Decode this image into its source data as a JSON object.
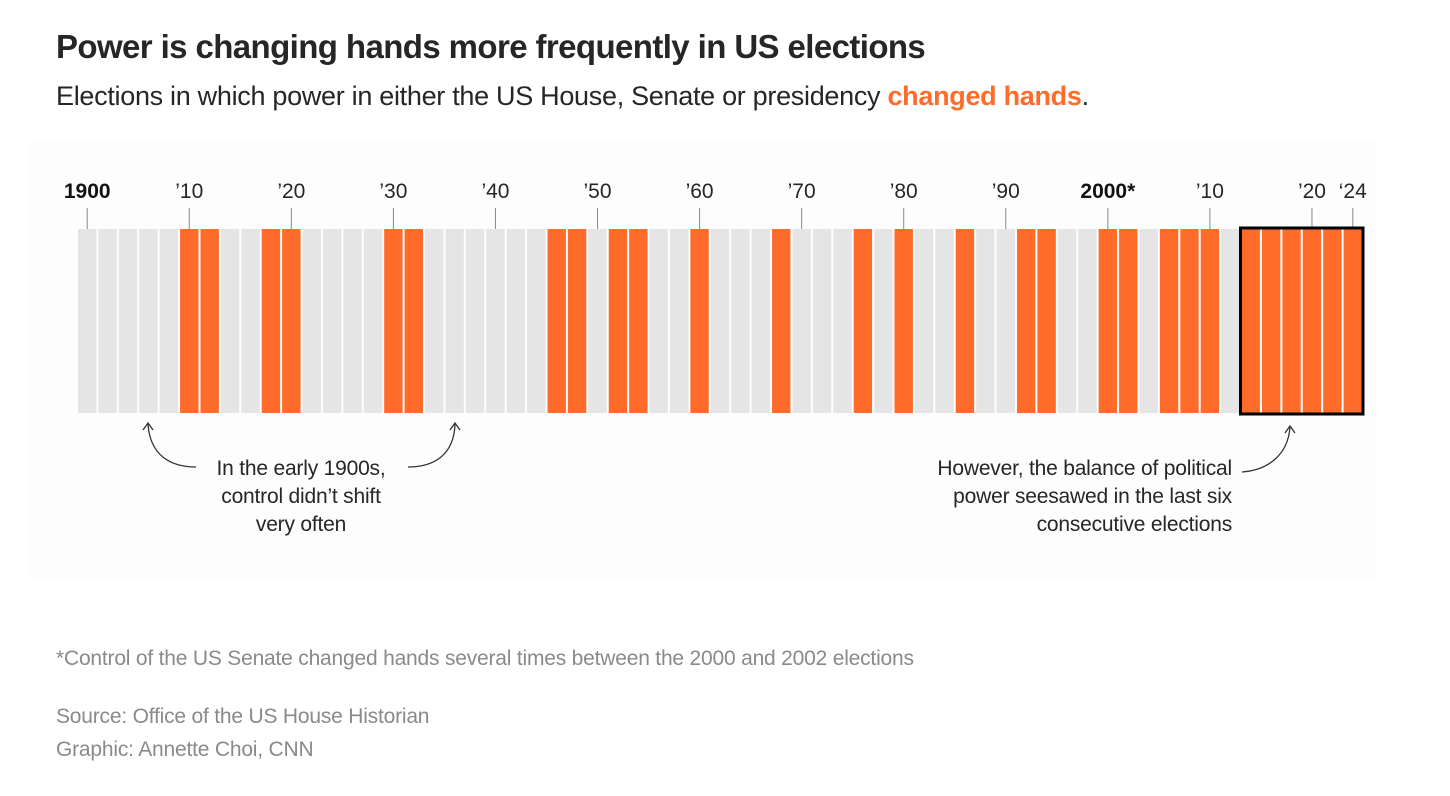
{
  "header": {
    "title": "Power is changing hands more frequently in US elections",
    "subtitle_prefix": "Elections in which power in either the US House, Senate or presidency ",
    "subtitle_highlight": "changed hands",
    "subtitle_suffix": "."
  },
  "colors": {
    "changed": "#ff6b2b",
    "unchanged": "#e5e5e5",
    "highlight_box": "#000000",
    "tick": "#888888"
  },
  "chart_data": {
    "type": "bar",
    "title": "Power is changing hands more frequently in US elections",
    "subtitle": "Elections in which power in either the US House, Senate or presidency changed hands.",
    "xlabel": "",
    "ylabel": "",
    "x_range": [
      1900,
      2024
    ],
    "step": 2,
    "legend": "inline-subtitle",
    "categories": [
      1900,
      1902,
      1904,
      1906,
      1908,
      1910,
      1912,
      1914,
      1916,
      1918,
      1920,
      1922,
      1924,
      1926,
      1928,
      1930,
      1932,
      1934,
      1936,
      1938,
      1940,
      1942,
      1944,
      1946,
      1948,
      1950,
      1952,
      1954,
      1956,
      1958,
      1960,
      1962,
      1964,
      1966,
      1968,
      1970,
      1972,
      1974,
      1976,
      1978,
      1980,
      1982,
      1984,
      1986,
      1988,
      1990,
      1992,
      1994,
      1996,
      1998,
      2000,
      2002,
      2004,
      2006,
      2008,
      2010,
      2012,
      2014,
      2016,
      2018,
      2020,
      2022,
      2024
    ],
    "changed_hands": [
      0,
      0,
      0,
      0,
      0,
      1,
      1,
      0,
      0,
      1,
      1,
      0,
      0,
      0,
      0,
      1,
      1,
      0,
      0,
      0,
      0,
      0,
      0,
      1,
      1,
      0,
      1,
      1,
      0,
      0,
      1,
      0,
      0,
      0,
      1,
      0,
      0,
      0,
      1,
      0,
      1,
      0,
      0,
      1,
      0,
      0,
      1,
      1,
      0,
      0,
      1,
      1,
      0,
      1,
      1,
      1,
      0,
      1,
      1,
      1,
      1,
      1,
      1
    ],
    "ticks": [
      {
        "year": 1900,
        "label": "1900",
        "bold": true
      },
      {
        "year": 1910,
        "label": "’10",
        "bold": false
      },
      {
        "year": 1920,
        "label": "’20",
        "bold": false
      },
      {
        "year": 1930,
        "label": "’30",
        "bold": false
      },
      {
        "year": 1940,
        "label": "’40",
        "bold": false
      },
      {
        "year": 1950,
        "label": "’50",
        "bold": false
      },
      {
        "year": 1960,
        "label": "’60",
        "bold": false
      },
      {
        "year": 1970,
        "label": "’70",
        "bold": false
      },
      {
        "year": 1980,
        "label": "’80",
        "bold": false
      },
      {
        "year": 1990,
        "label": "’90",
        "bold": false
      },
      {
        "year": 2000,
        "label": "2000*",
        "bold": true
      },
      {
        "year": 2010,
        "label": "’10",
        "bold": false
      },
      {
        "year": 2020,
        "label": "’20",
        "bold": false
      },
      {
        "year": 2024,
        "label": "‘24",
        "bold": false
      }
    ],
    "highlight_range": [
      2014,
      2024
    ],
    "annotations": [
      {
        "text": "In the early 1900s, control didn’t shift very often",
        "points_to": [
          1906,
          1936
        ]
      },
      {
        "text": "However, the balance of political power seesawed in the last six consecutive elections",
        "points_to": [
          2018
        ]
      }
    ]
  },
  "annotations": {
    "left_line1": "In the early 1900s,",
    "left_line2": "control didn’t shift",
    "left_line3": "very often",
    "right_line1": "However, the balance of political",
    "right_line2": "power seesawed in the last six",
    "right_line3": "consecutive elections"
  },
  "footer": {
    "footnote": "*Control of the US Senate changed hands several times between the 2000 and 2002 elections",
    "source": "Source: Office of the US House Historian",
    "credit": "Graphic: Annette Choi, CNN"
  }
}
